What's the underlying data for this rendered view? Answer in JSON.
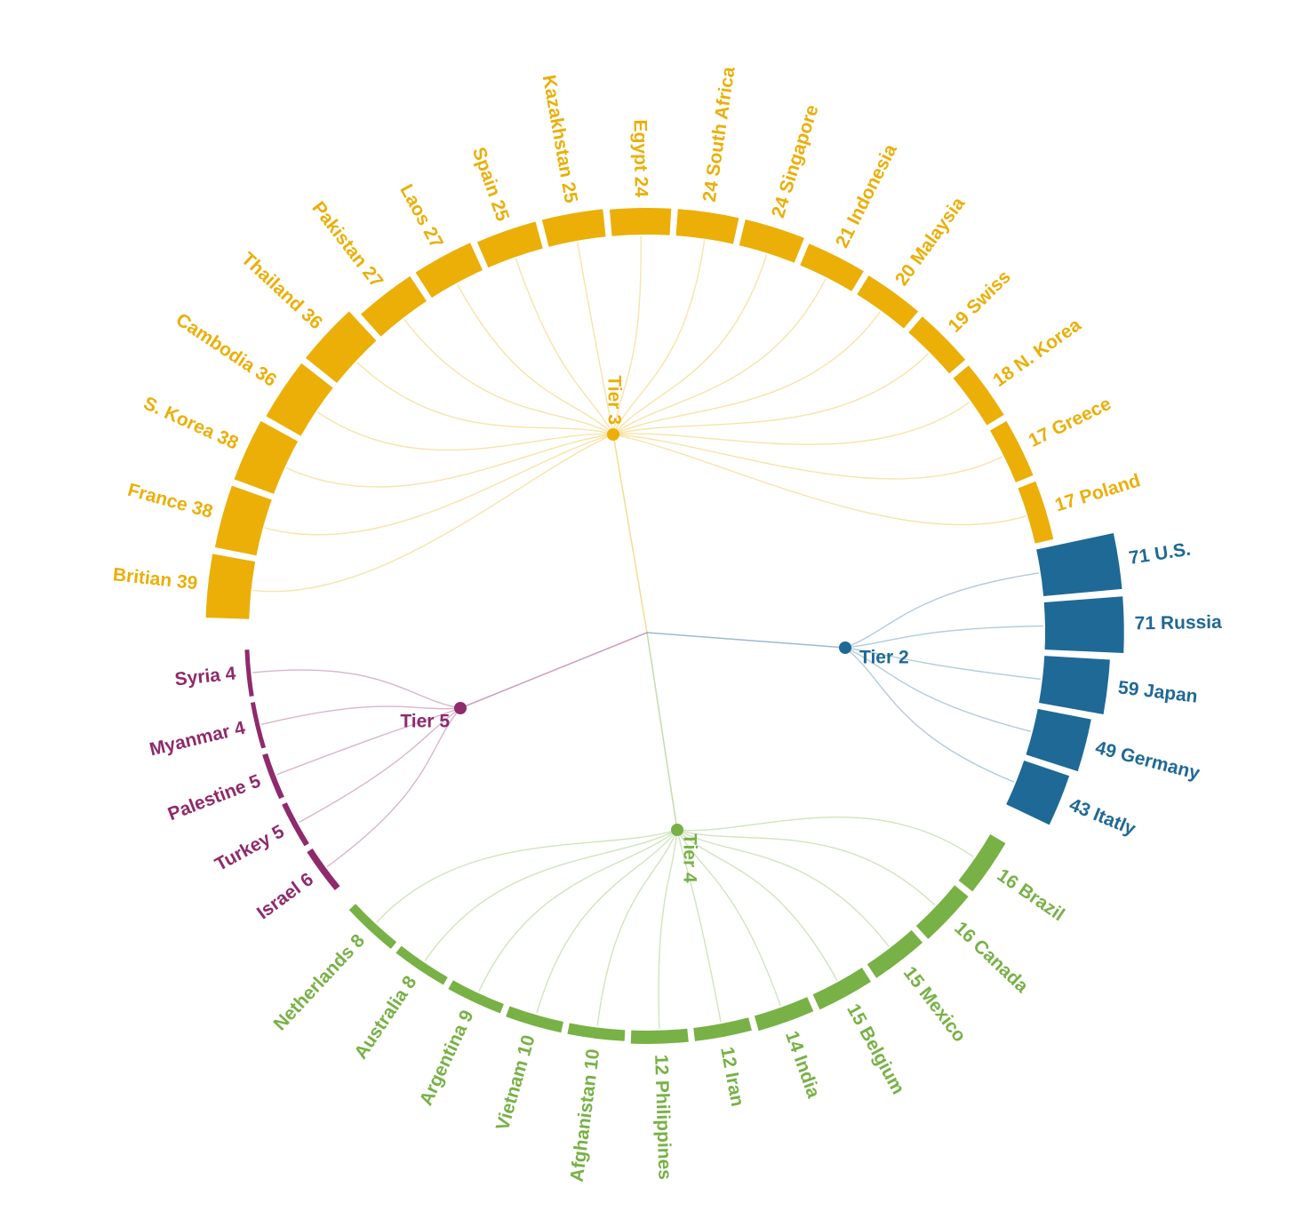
{
  "chart_data": {
    "type": "radial-bar-tree",
    "title": "",
    "colors": {
      "Tier 2": "#1f6996",
      "Tier 3": "#ebaf08",
      "Tier 4": "#78b146",
      "Tier 5": "#8f2a6c"
    },
    "tiers": [
      {
        "name": "Tier 2",
        "countries": [
          {
            "name": "U.S.",
            "value": 71
          },
          {
            "name": "Russia",
            "value": 71
          },
          {
            "name": "Japan",
            "value": 59
          },
          {
            "name": "Germany",
            "value": 49
          },
          {
            "name": "Itatly",
            "value": 43
          }
        ]
      },
      {
        "name": "Tier 4",
        "countries": [
          {
            "name": "Brazil",
            "value": 16
          },
          {
            "name": "Canada",
            "value": 16
          },
          {
            "name": "Mexico",
            "value": 15
          },
          {
            "name": "Belgium",
            "value": 15
          },
          {
            "name": "India",
            "value": 14
          },
          {
            "name": "Iran",
            "value": 12
          },
          {
            "name": "Philippines",
            "value": 12
          },
          {
            "name": "Afghanistan",
            "value": 10
          },
          {
            "name": "Vietnam",
            "value": 10
          },
          {
            "name": "Argentina",
            "value": 9
          },
          {
            "name": "Australia",
            "value": 8
          },
          {
            "name": "Netherlands",
            "value": 8
          }
        ]
      },
      {
        "name": "Tier 5",
        "countries": [
          {
            "name": "Israel",
            "value": 6
          },
          {
            "name": "Turkey",
            "value": 5
          },
          {
            "name": "Palestine",
            "value": 5
          },
          {
            "name": "Myanmar",
            "value": 4
          },
          {
            "name": "Syria",
            "value": 4
          }
        ]
      },
      {
        "name": "Tier 3",
        "countries": [
          {
            "name": "Britian",
            "value": 39
          },
          {
            "name": "France",
            "value": 38
          },
          {
            "name": "S. Korea",
            "value": 38
          },
          {
            "name": "Cambodia",
            "value": 36
          },
          {
            "name": "Thailand",
            "value": 36
          },
          {
            "name": "Pakistan",
            "value": 27
          },
          {
            "name": "Laos",
            "value": 27
          },
          {
            "name": "Spain",
            "value": 25
          },
          {
            "name": "Kazakhstan",
            "value": 25
          },
          {
            "name": "Egypt",
            "value": 24
          },
          {
            "name": "South Africa",
            "value": 24
          },
          {
            "name": "Singapore",
            "value": 24
          },
          {
            "name": "Indonesia",
            "value": 21
          },
          {
            "name": "Malaysia",
            "value": 20
          },
          {
            "name": "Swiss",
            "value": 19
          },
          {
            "name": "N. Korea",
            "value": 18
          },
          {
            "name": "Greece",
            "value": 17
          },
          {
            "name": "Poland",
            "value": 17
          }
        ]
      }
    ]
  }
}
